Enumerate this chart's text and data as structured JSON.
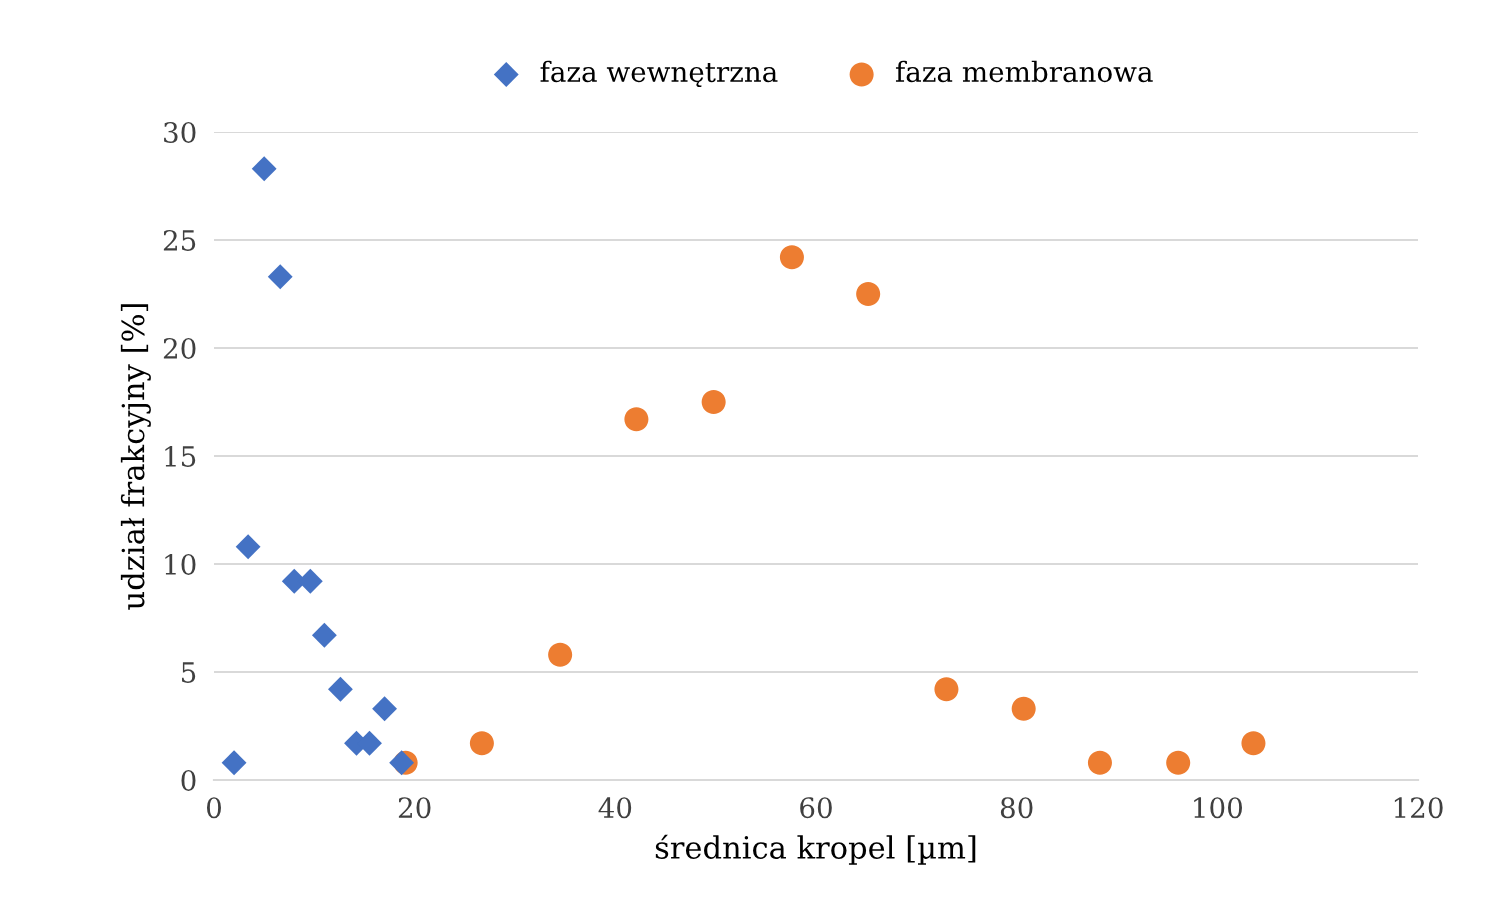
{
  "chart_data": {
    "type": "scatter",
    "xlabel": "średnica kropel [µm]",
    "ylabel": "udział frakcyjny [%]",
    "series": [
      {
        "name": "faza wewnętrzna",
        "color": "#4472c4",
        "marker": "diamond",
        "x": [
          2.0,
          3.4,
          5.0,
          6.6,
          8.0,
          9.6,
          11.0,
          12.6,
          14.2,
          15.5,
          17.0,
          18.7
        ],
        "values": [
          0.8,
          10.8,
          28.3,
          23.3,
          9.2,
          9.2,
          6.7,
          4.2,
          1.7,
          1.7,
          3.3,
          0.8
        ]
      },
      {
        "name": "faza membranowa",
        "color": "#ed7d31",
        "marker": "circle",
        "x": [
          19.1,
          26.7,
          34.5,
          42.1,
          49.8,
          57.6,
          65.2,
          73.0,
          80.7,
          88.3,
          96.1,
          103.6
        ],
        "values": [
          0.8,
          1.7,
          5.8,
          16.7,
          17.5,
          24.2,
          22.5,
          4.2,
          3.3,
          0.8,
          0.8,
          1.7
        ]
      }
    ],
    "xlim": [
      0,
      120
    ],
    "xticks": [
      0,
      20,
      40,
      60,
      80,
      100,
      120
    ],
    "ylim": [
      0,
      30
    ],
    "yticks": [
      0,
      5,
      10,
      15,
      20,
      25,
      30
    ],
    "grid": "y",
    "legend": "top"
  }
}
